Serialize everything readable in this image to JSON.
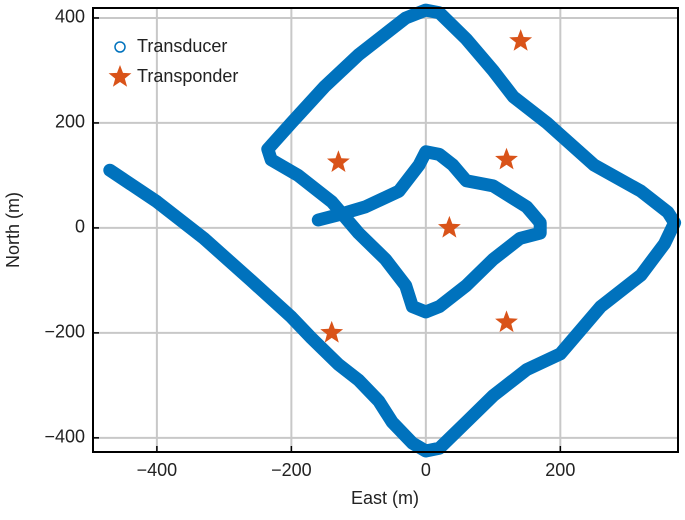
{
  "chart_data": {
    "type": "scatter",
    "xlabel": "East (m)",
    "ylabel": "North (m)",
    "xlim": [
      -495,
      375
    ],
    "ylim": [
      -427,
      419
    ],
    "xticks": [
      {
        "value": -400,
        "label": "−400"
      },
      {
        "value": -200,
        "label": "−200"
      },
      0,
      200
    ],
    "yticks": [
      {
        "value": -400,
        "label": "−400"
      },
      {
        "value": -200,
        "label": "−200"
      },
      0,
      200,
      400
    ],
    "grid": true,
    "legend": "upper left",
    "series": [
      {
        "name": "Transducer",
        "color": "#0072BD",
        "marker": "circle",
        "x": [
          -470,
          -400,
          -330,
          -260,
          -200,
          -170,
          -130,
          -100,
          -70,
          -50,
          -20,
          0,
          20,
          60,
          100,
          150,
          200,
          260,
          320,
          355,
          370,
          360,
          320,
          250,
          180,
          130,
          100,
          60,
          20,
          0,
          -30,
          -100,
          -150,
          -200,
          -235,
          -230,
          -190,
          -160,
          -140,
          -100,
          -60,
          -30,
          -20,
          0,
          20,
          60,
          100,
          140,
          170,
          170,
          150,
          100,
          60,
          40,
          20,
          0,
          -10,
          -40,
          -90,
          -130,
          -160
        ],
        "y": [
          110,
          50,
          -20,
          -100,
          -170,
          -210,
          -260,
          -290,
          -330,
          -370,
          -410,
          -425,
          -420,
          -370,
          -320,
          -270,
          -240,
          -150,
          -90,
          -30,
          10,
          30,
          70,
          120,
          200,
          250,
          300,
          360,
          410,
          415,
          400,
          330,
          270,
          200,
          150,
          130,
          100,
          70,
          50,
          -10,
          -60,
          -110,
          -150,
          -160,
          -150,
          -110,
          -60,
          -20,
          -10,
          10,
          40,
          80,
          90,
          120,
          140,
          145,
          120,
          70,
          40,
          25,
          15
        ]
      },
      {
        "name": "Transponder",
        "color": "#D95319",
        "marker": "star",
        "x": [
          -130,
          120,
          35,
          -140,
          120,
          141
        ],
        "y": [
          125,
          130,
          0,
          -200,
          -180,
          356
        ]
      }
    ]
  }
}
